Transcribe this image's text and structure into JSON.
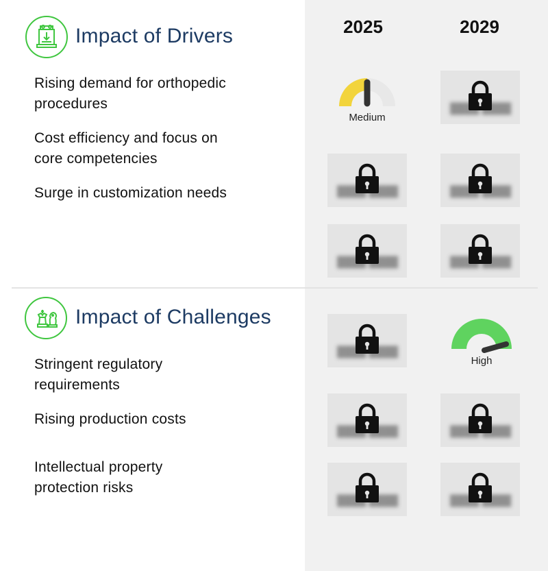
{
  "drivers": {
    "title": "Impact of Drivers",
    "items": [
      {
        "line1": "Rising demand for orthopedic",
        "line2": "procedures"
      },
      {
        "line1": "Cost efficiency and focus on",
        "line2": "core competencies"
      },
      {
        "line1": "Surge in customization needs",
        "line2": ""
      }
    ]
  },
  "challenges": {
    "title": "Impact of Challenges",
    "items": [
      {
        "line1": "Stringent regulatory",
        "line2": "requirements"
      },
      {
        "line1": "Rising production costs",
        "line2": ""
      },
      {
        "line1": "Intellectual property",
        "line2": "protection risks"
      }
    ]
  },
  "years": [
    "2025",
    "2029"
  ],
  "gauges": {
    "driver_2025": {
      "label": "Medium",
      "color": "#f2d43c"
    },
    "challenge_2029": {
      "label": "High",
      "color": "#5fd35f"
    }
  },
  "colors": {
    "accent_green": "#3fc63f",
    "title_blue": "#1d3b63"
  },
  "icons": {
    "drivers": "machine-icon",
    "challenges": "chess-icon",
    "locked": "lock-icon"
  }
}
